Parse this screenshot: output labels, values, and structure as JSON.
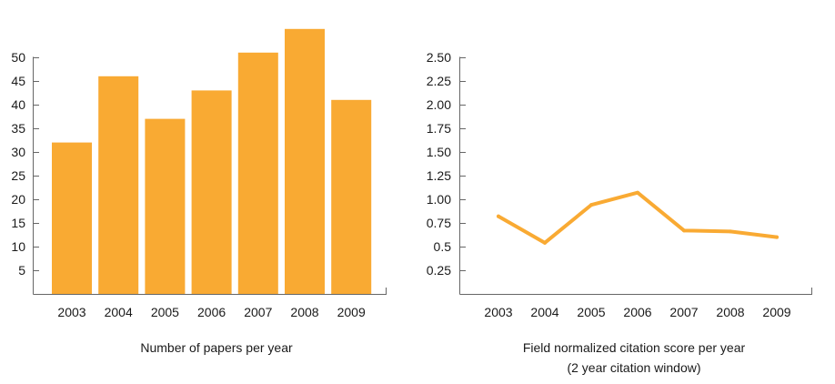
{
  "chart_data": [
    {
      "type": "bar",
      "categories": [
        "2003",
        "2004",
        "2005",
        "2006",
        "2007",
        "2008",
        "2009"
      ],
      "values": [
        32,
        46,
        37,
        43,
        51,
        56,
        41
      ],
      "title": "Number of papers per year",
      "xlabel": "",
      "ylabel": "",
      "ylim": [
        0,
        55
      ],
      "yticks": [
        "5",
        "10",
        "15",
        "20",
        "25",
        "30",
        "35",
        "40",
        "45",
        "50"
      ],
      "grid": false,
      "color": "#F9AA33"
    },
    {
      "type": "line",
      "categories": [
        "2003",
        "2004",
        "2005",
        "2006",
        "2007",
        "2008",
        "2009"
      ],
      "values": [
        0.82,
        0.54,
        0.94,
        1.07,
        0.67,
        0.66,
        0.6
      ],
      "title": "Field normalized citation score per year",
      "subtitle": "(2 year citation window)",
      "xlabel": "",
      "ylabel": "",
      "ylim": [
        0,
        2.625
      ],
      "yticks": [
        "0.25",
        "0.5",
        "0.75",
        "1.00",
        "1.25",
        "1.50",
        "1.75",
        "2.00",
        "2.25",
        "2.50"
      ],
      "grid": false,
      "color": "#F9AA33"
    }
  ]
}
